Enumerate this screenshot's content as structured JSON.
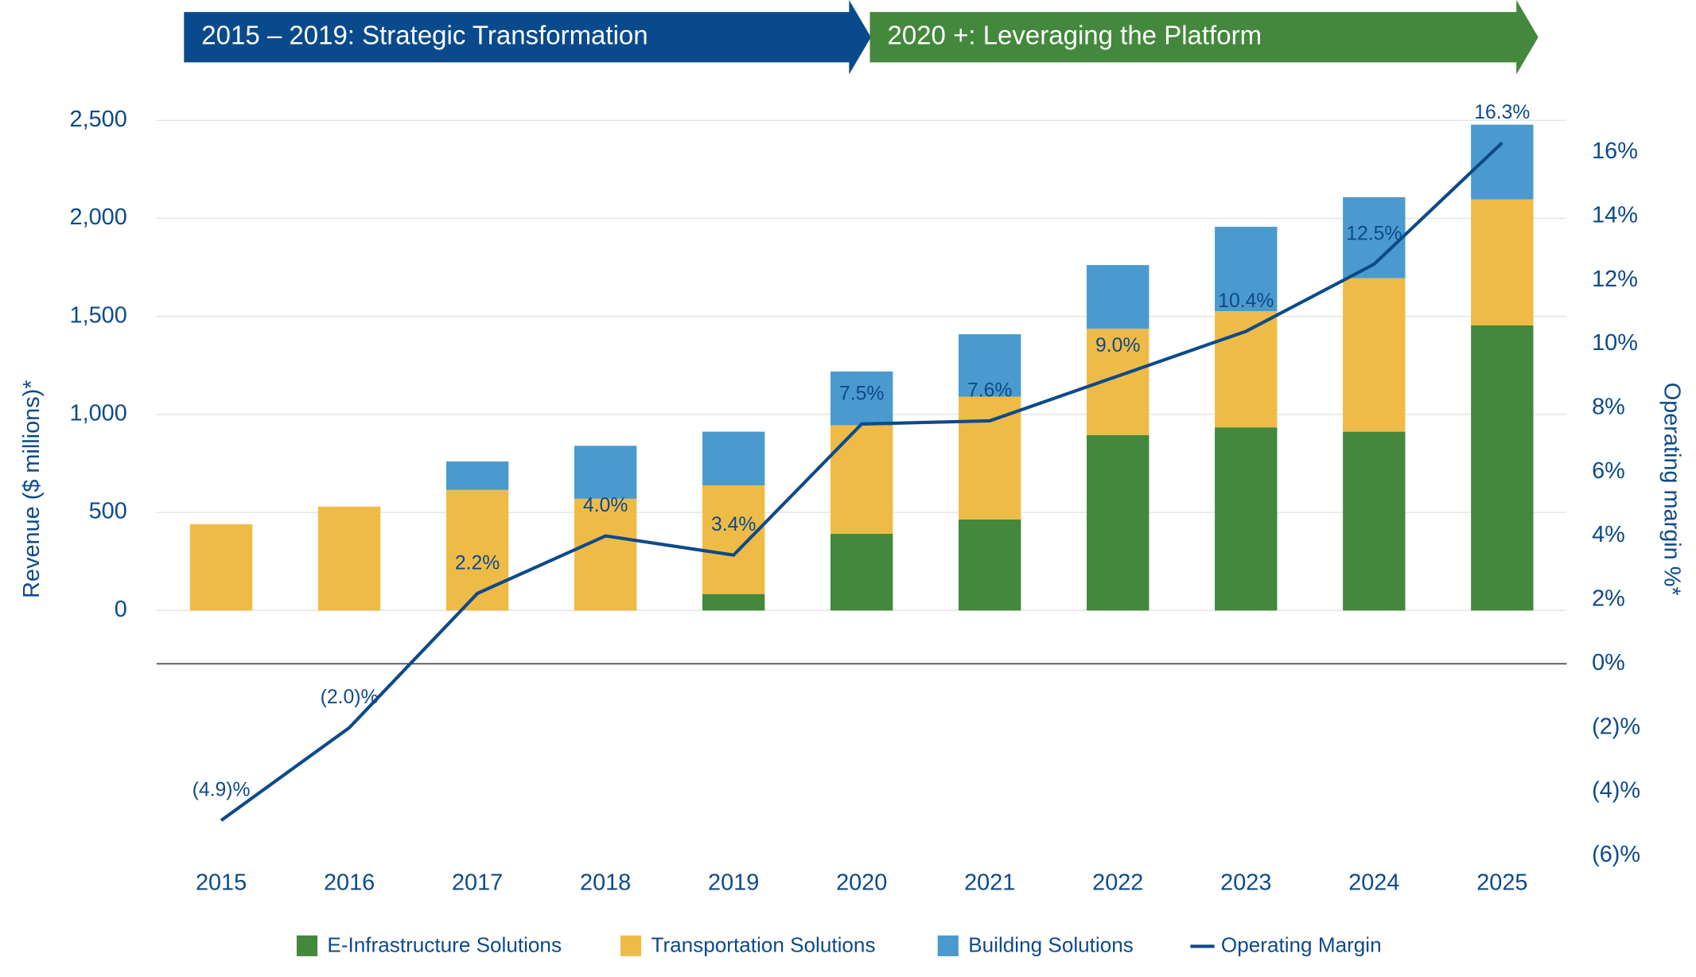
{
  "chart_data": {
    "type": "bar",
    "stacked": true,
    "phases": [
      "2015 – 2019: Strategic Transformation",
      "2020 +: Leveraging the Platform"
    ],
    "phase_colors": [
      "#0a4a8c",
      "#43883c"
    ],
    "y_label": "Revenue ($ millions)*",
    "y2_label": "Operating margin  %*",
    "categories": [
      "2015",
      "2016",
      "2017",
      "2018",
      "2019",
      "2020",
      "2021",
      "2022",
      "2023",
      "2024",
      "2025"
    ],
    "series": [
      {
        "name": "E-Infrastructure Solutions",
        "color": "#43883c",
        "values": [
          0,
          0,
          0,
          0,
          84,
          391,
          464,
          895,
          934,
          912,
          1454
        ]
      },
      {
        "name": "Transportation Solutions",
        "color": "#efbb47",
        "values": [
          440,
          530,
          615,
          570,
          554,
          554,
          627,
          542,
          593,
          783,
          643
        ]
      },
      {
        "name": "Building Solutions",
        "color": "#4a9acf",
        "values": [
          0,
          0,
          145,
          270,
          274,
          274,
          318,
          325,
          430,
          413,
          381
        ]
      },
      {
        "name": "Operating Margin",
        "color": "#0d4a8a",
        "type": "line",
        "axis": "y2",
        "values": [
          -4.9,
          -2.0,
          2.2,
          4.0,
          3.4,
          7.5,
          7.6,
          9.0,
          10.4,
          12.5,
          16.3
        ],
        "value_labels": [
          "(4.9)%",
          "(2.0)%",
          "2.2%",
          "4.0%",
          "3.4%",
          "7.5%",
          "7.6%",
          "9.0%",
          "10.4%",
          "12.5%",
          "16.3%"
        ]
      }
    ],
    "ylim": [
      -1250,
      2500
    ],
    "yticks": [
      0,
      500,
      {
        "value": 1000,
        "label": "1,000"
      },
      {
        "value": 1500,
        "label": "1,500"
      },
      {
        "value": 2000,
        "label": "2,000"
      },
      {
        "value": 2500,
        "label": "2,500"
      }
    ],
    "y2lim": [
      -6,
      17
    ],
    "y2ticks": [
      {
        "value": -6,
        "label": "(6)%"
      },
      {
        "value": -4,
        "label": "(4)%"
      },
      {
        "value": -2,
        "label": "(2)%"
      },
      {
        "value": 0,
        "label": "0%"
      },
      {
        "value": 2,
        "label": "2%"
      },
      {
        "value": 4,
        "label": "4%"
      },
      {
        "value": 6,
        "label": "6%"
      },
      {
        "value": 8,
        "label": "8%"
      },
      {
        "value": 10,
        "label": "10%"
      },
      {
        "value": 12,
        "label": "12%"
      },
      {
        "value": 14,
        "label": "14%"
      },
      {
        "value": 16,
        "label": "16%"
      }
    ],
    "grid": true
  }
}
